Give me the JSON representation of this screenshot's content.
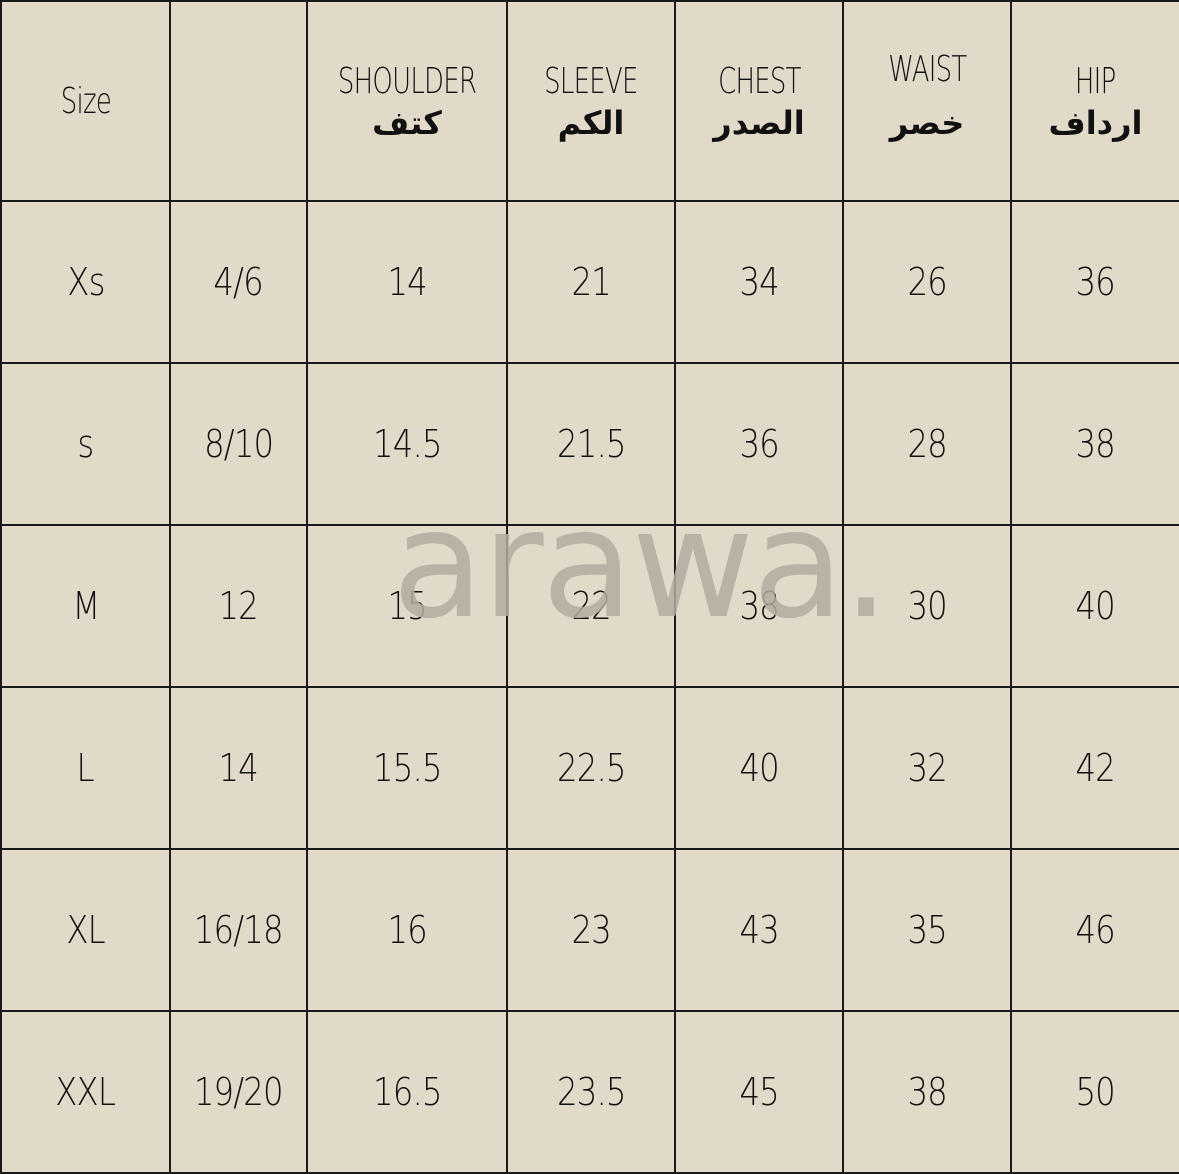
{
  "watermark": "arawa.",
  "colors": {
    "background": "#e2dac9",
    "grid": "#1a1a1a",
    "watermark": "#b3ada1"
  },
  "headers": [
    {
      "en": "Size",
      "ar": ""
    },
    {
      "en": "",
      "ar": ""
    },
    {
      "en": "SHOULDER",
      "ar": "كتف"
    },
    {
      "en": "SLEEVE",
      "ar": "الكم"
    },
    {
      "en": "CHEST",
      "ar": "الصدر"
    },
    {
      "en": "WAIST",
      "ar": "خصر"
    },
    {
      "en": "HIP",
      "ar": "ارداف"
    }
  ],
  "rows": [
    [
      "Xs",
      "4/6",
      "14",
      "21",
      "34",
      "26",
      "36"
    ],
    [
      "s",
      "8/10",
      "14.5",
      "21.5",
      "36",
      "28",
      "38"
    ],
    [
      "M",
      "12",
      "15",
      "22",
      "38",
      "30",
      "40"
    ],
    [
      "L",
      "14",
      "15.5",
      "22.5",
      "40",
      "32",
      "42"
    ],
    [
      "XL",
      "16/18",
      "16",
      "23",
      "43",
      "35",
      "46"
    ],
    [
      "XXL",
      "19/20",
      "16.5",
      "23.5",
      "45",
      "38",
      "50"
    ]
  ]
}
